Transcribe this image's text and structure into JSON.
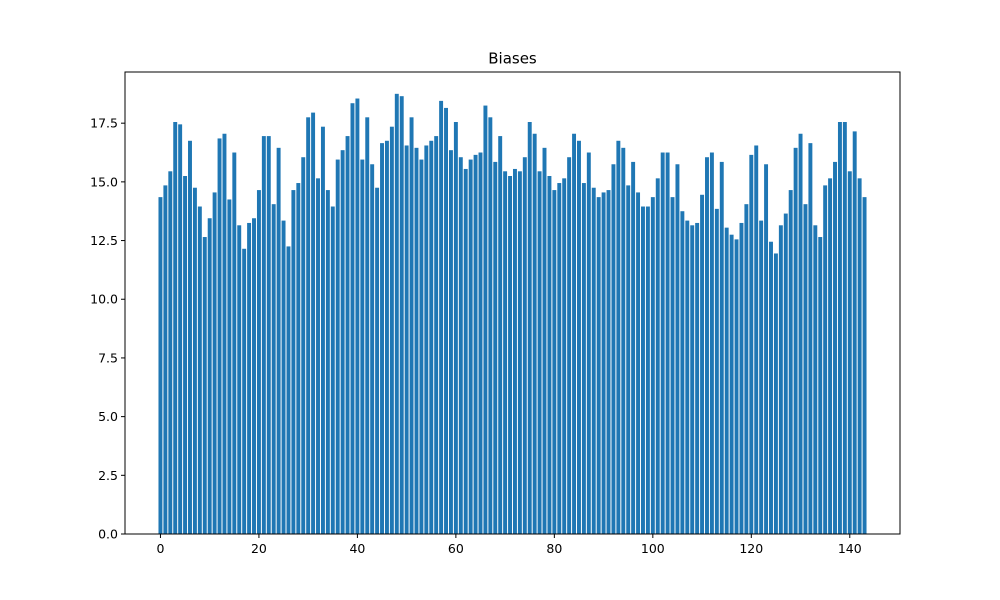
{
  "chart_data": {
    "type": "bar",
    "title": "Biases",
    "xlabel": "",
    "ylabel": "",
    "x": [
      0,
      1,
      2,
      3,
      4,
      5,
      6,
      7,
      8,
      9,
      10,
      11,
      12,
      13,
      14,
      15,
      16,
      17,
      18,
      19,
      20,
      21,
      22,
      23,
      24,
      25,
      26,
      27,
      28,
      29,
      30,
      31,
      32,
      33,
      34,
      35,
      36,
      37,
      38,
      39,
      40,
      41,
      42,
      43,
      44,
      45,
      46,
      47,
      48,
      49,
      50,
      51,
      52,
      53,
      54,
      55,
      56,
      57,
      58,
      59,
      60,
      61,
      62,
      63,
      64,
      65,
      66,
      67,
      68,
      69,
      70,
      71,
      72,
      73,
      74,
      75,
      76,
      77,
      78,
      79,
      80,
      81,
      82,
      83,
      84,
      85,
      86,
      87,
      88,
      89,
      90,
      91,
      92,
      93,
      94,
      95,
      96,
      97,
      98,
      99,
      100,
      101,
      102,
      103,
      104,
      105,
      106,
      107,
      108,
      109,
      110,
      111,
      112,
      113,
      114,
      115,
      116,
      117,
      118,
      119,
      120,
      121,
      122,
      123,
      124,
      125,
      126,
      127,
      128,
      129,
      130,
      131,
      132,
      133,
      134,
      135,
      136,
      137,
      138,
      139,
      140,
      141,
      142,
      143
    ],
    "values": [
      14.35,
      14.85,
      15.45,
      17.55,
      17.45,
      15.25,
      16.75,
      14.75,
      13.95,
      12.65,
      13.45,
      14.55,
      16.85,
      17.05,
      14.25,
      16.25,
      13.15,
      12.15,
      13.25,
      13.45,
      14.65,
      16.95,
      16.95,
      14.05,
      16.45,
      13.35,
      12.25,
      14.65,
      14.95,
      16.05,
      17.75,
      17.95,
      15.15,
      17.35,
      14.65,
      13.95,
      15.95,
      16.35,
      16.95,
      18.35,
      18.55,
      15.95,
      17.75,
      15.75,
      14.75,
      16.65,
      16.75,
      17.35,
      18.75,
      18.65,
      16.55,
      17.75,
      16.45,
      15.95,
      16.55,
      16.75,
      16.95,
      18.45,
      18.15,
      16.35,
      17.55,
      16.05,
      15.55,
      15.95,
      16.15,
      16.25,
      18.25,
      17.75,
      15.85,
      16.95,
      15.45,
      15.25,
      15.55,
      15.45,
      16.05,
      17.55,
      17.05,
      15.45,
      16.45,
      15.25,
      14.65,
      14.95,
      15.15,
      16.05,
      17.05,
      16.75,
      14.95,
      16.25,
      14.75,
      14.35,
      14.55,
      14.65,
      15.75,
      16.75,
      16.45,
      14.85,
      15.85,
      14.55,
      13.95,
      13.95,
      14.35,
      15.15,
      16.25,
      16.25,
      14.35,
      15.75,
      13.75,
      13.35,
      13.15,
      13.25,
      14.45,
      16.05,
      16.25,
      13.85,
      15.85,
      13.05,
      12.75,
      12.55,
      13.25,
      14.05,
      16.15,
      16.55,
      13.35,
      15.75,
      12.45,
      11.95,
      13.15,
      13.65,
      14.65,
      16.45,
      17.05,
      14.05,
      16.65,
      13.15,
      12.65,
      14.85,
      15.15,
      15.85,
      17.55,
      17.55,
      15.45,
      17.15,
      15.15,
      14.35
    ],
    "xlim": [
      -7.2,
      150.2
    ],
    "ylim": [
      0,
      19.68
    ],
    "xticks": [
      "0",
      "20",
      "40",
      "60",
      "80",
      "100",
      "120",
      "140"
    ],
    "yticks": [
      "0.0",
      "2.5",
      "5.0",
      "7.5",
      "10.0",
      "12.5",
      "15.0",
      "17.5"
    ],
    "bar_color": "#1f77b4",
    "grid": false,
    "legend": "none"
  }
}
